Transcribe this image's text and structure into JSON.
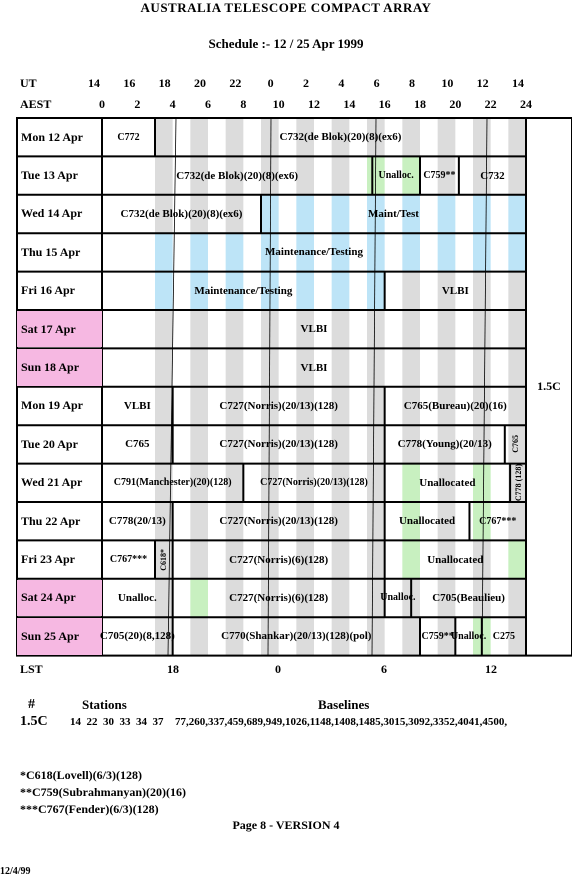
{
  "header": {
    "title": "AUSTRALIA TELESCOPE COMPACT ARRAY",
    "subtitle": "Schedule :- 12 / 25 Apr 1999"
  },
  "axes": {
    "ut_label": "UT",
    "ut_ticks": [
      "14",
      "16",
      "18",
      "20",
      "22",
      "0",
      "2",
      "4",
      "6",
      "8",
      "10",
      "12",
      "14"
    ],
    "aest_label": "AEST",
    "aest_ticks": [
      "0",
      "2",
      "4",
      "6",
      "8",
      "10",
      "12",
      "14",
      "16",
      "18",
      "20",
      "22",
      "24"
    ],
    "lst_label": "LST",
    "lst_ticks": [
      "18",
      "0",
      "6",
      "12"
    ]
  },
  "configuration": "1.5C",
  "days": [
    {
      "label": "Mon  12  Apr",
      "weekend": false,
      "blocks": [
        {
          "text": "C772"
        },
        {
          "text": "C732(de Blok)(20)(8)(ex6)"
        }
      ]
    },
    {
      "label": "Tue  13  Apr",
      "weekend": false,
      "blocks": [
        {
          "text": "C732(de Blok)(20)(8)(ex6)"
        },
        {
          "text": "Unalloc."
        },
        {
          "text": "C759**"
        },
        {
          "text": "C732"
        }
      ]
    },
    {
      "label": "Wed  14  Apr",
      "weekend": false,
      "blocks": [
        {
          "text": "C732(de Blok)(20)(8)(ex6)"
        },
        {
          "text": "Maint/Test"
        }
      ]
    },
    {
      "label": "Thu  15  Apr",
      "weekend": false,
      "blocks": [
        {
          "text": "Maintenance/Testing"
        }
      ]
    },
    {
      "label": "Fri   16  Apr",
      "weekend": false,
      "blocks": [
        {
          "text": "Maintenance/Testing"
        },
        {
          "text": "VLBI"
        }
      ]
    },
    {
      "label": "Sat   17  Apr",
      "weekend": true,
      "blocks": [
        {
          "text": "VLBI"
        }
      ]
    },
    {
      "label": "Sun  18  Apr",
      "weekend": true,
      "blocks": [
        {
          "text": "VLBI"
        }
      ]
    },
    {
      "label": "Mon  19  Apr",
      "weekend": false,
      "blocks": [
        {
          "text": "VLBI"
        },
        {
          "text": "C727(Norris)(20/13)(128)"
        },
        {
          "text": "C765(Bureau)(20)(16)"
        }
      ]
    },
    {
      "label": "Tue   20  Apr",
      "weekend": false,
      "blocks": [
        {
          "text": "C765"
        },
        {
          "text": "C727(Norris)(20/13)(128)"
        },
        {
          "text": "C778(Young)(20/13)"
        },
        {
          "text": "C765"
        }
      ]
    },
    {
      "label": "Wed  21  Apr",
      "weekend": false,
      "blocks": [
        {
          "text": "C791(Manchester)(20)(128)"
        },
        {
          "text": "C727(Norris)(20/13)(128)"
        },
        {
          "text": "Unallocated"
        },
        {
          "text": "C778 (128)"
        }
      ]
    },
    {
      "label": "Thu  22  Apr",
      "weekend": false,
      "blocks": [
        {
          "text": "C778(20/13)"
        },
        {
          "text": "C727(Norris)(20/13)(128)"
        },
        {
          "text": "Unallocated"
        },
        {
          "text": "C767***"
        }
      ]
    },
    {
      "label": "Fri   23  Apr",
      "weekend": false,
      "blocks": [
        {
          "text": "C767***"
        },
        {
          "text": "C618*"
        },
        {
          "text": "C727(Norris)(6)(128)"
        },
        {
          "text": "Unallocated"
        }
      ]
    },
    {
      "label": "Sat   24  Apr",
      "weekend": true,
      "blocks": [
        {
          "text": "Unalloc."
        },
        {
          "text": "C727(Norris)(6)(128)"
        },
        {
          "text": "Unalloc."
        },
        {
          "text": "C705(Beaulieu)"
        }
      ]
    },
    {
      "label": "Sun  25  Apr",
      "weekend": true,
      "blocks": [
        {
          "text": "C705(20)(8,128)"
        },
        {
          "text": "C770(Shankar)(20/13)(128)(pol)"
        },
        {
          "text": "C759**"
        },
        {
          "text": "Unalloc."
        },
        {
          "text": "C275"
        }
      ]
    }
  ],
  "stations_table": {
    "col_hash": "#",
    "col_stations": "Stations",
    "col_baselines": "Baselines",
    "config": "1.5C",
    "stations": "14  22  30  33  34  37",
    "baselines": "77,260,337,459,689,949,1026,1148,1408,1485,3015,3092,3352,4041,4500,"
  },
  "footnotes": [
    "*C618(Lovell)(6/3)(128)",
    "**C759(Subrahmanyan)(20)(16)",
    "***C767(Fender)(6/3)(128)"
  ],
  "page_label": "Page 8 - VERSION 4",
  "date_stamp": "12/4/99",
  "colors": {
    "weekend": "#f6b8e2",
    "grey_band": "#dcdcdc",
    "blue_band": "#bde4f7",
    "green_band": "#c8f0c0"
  }
}
